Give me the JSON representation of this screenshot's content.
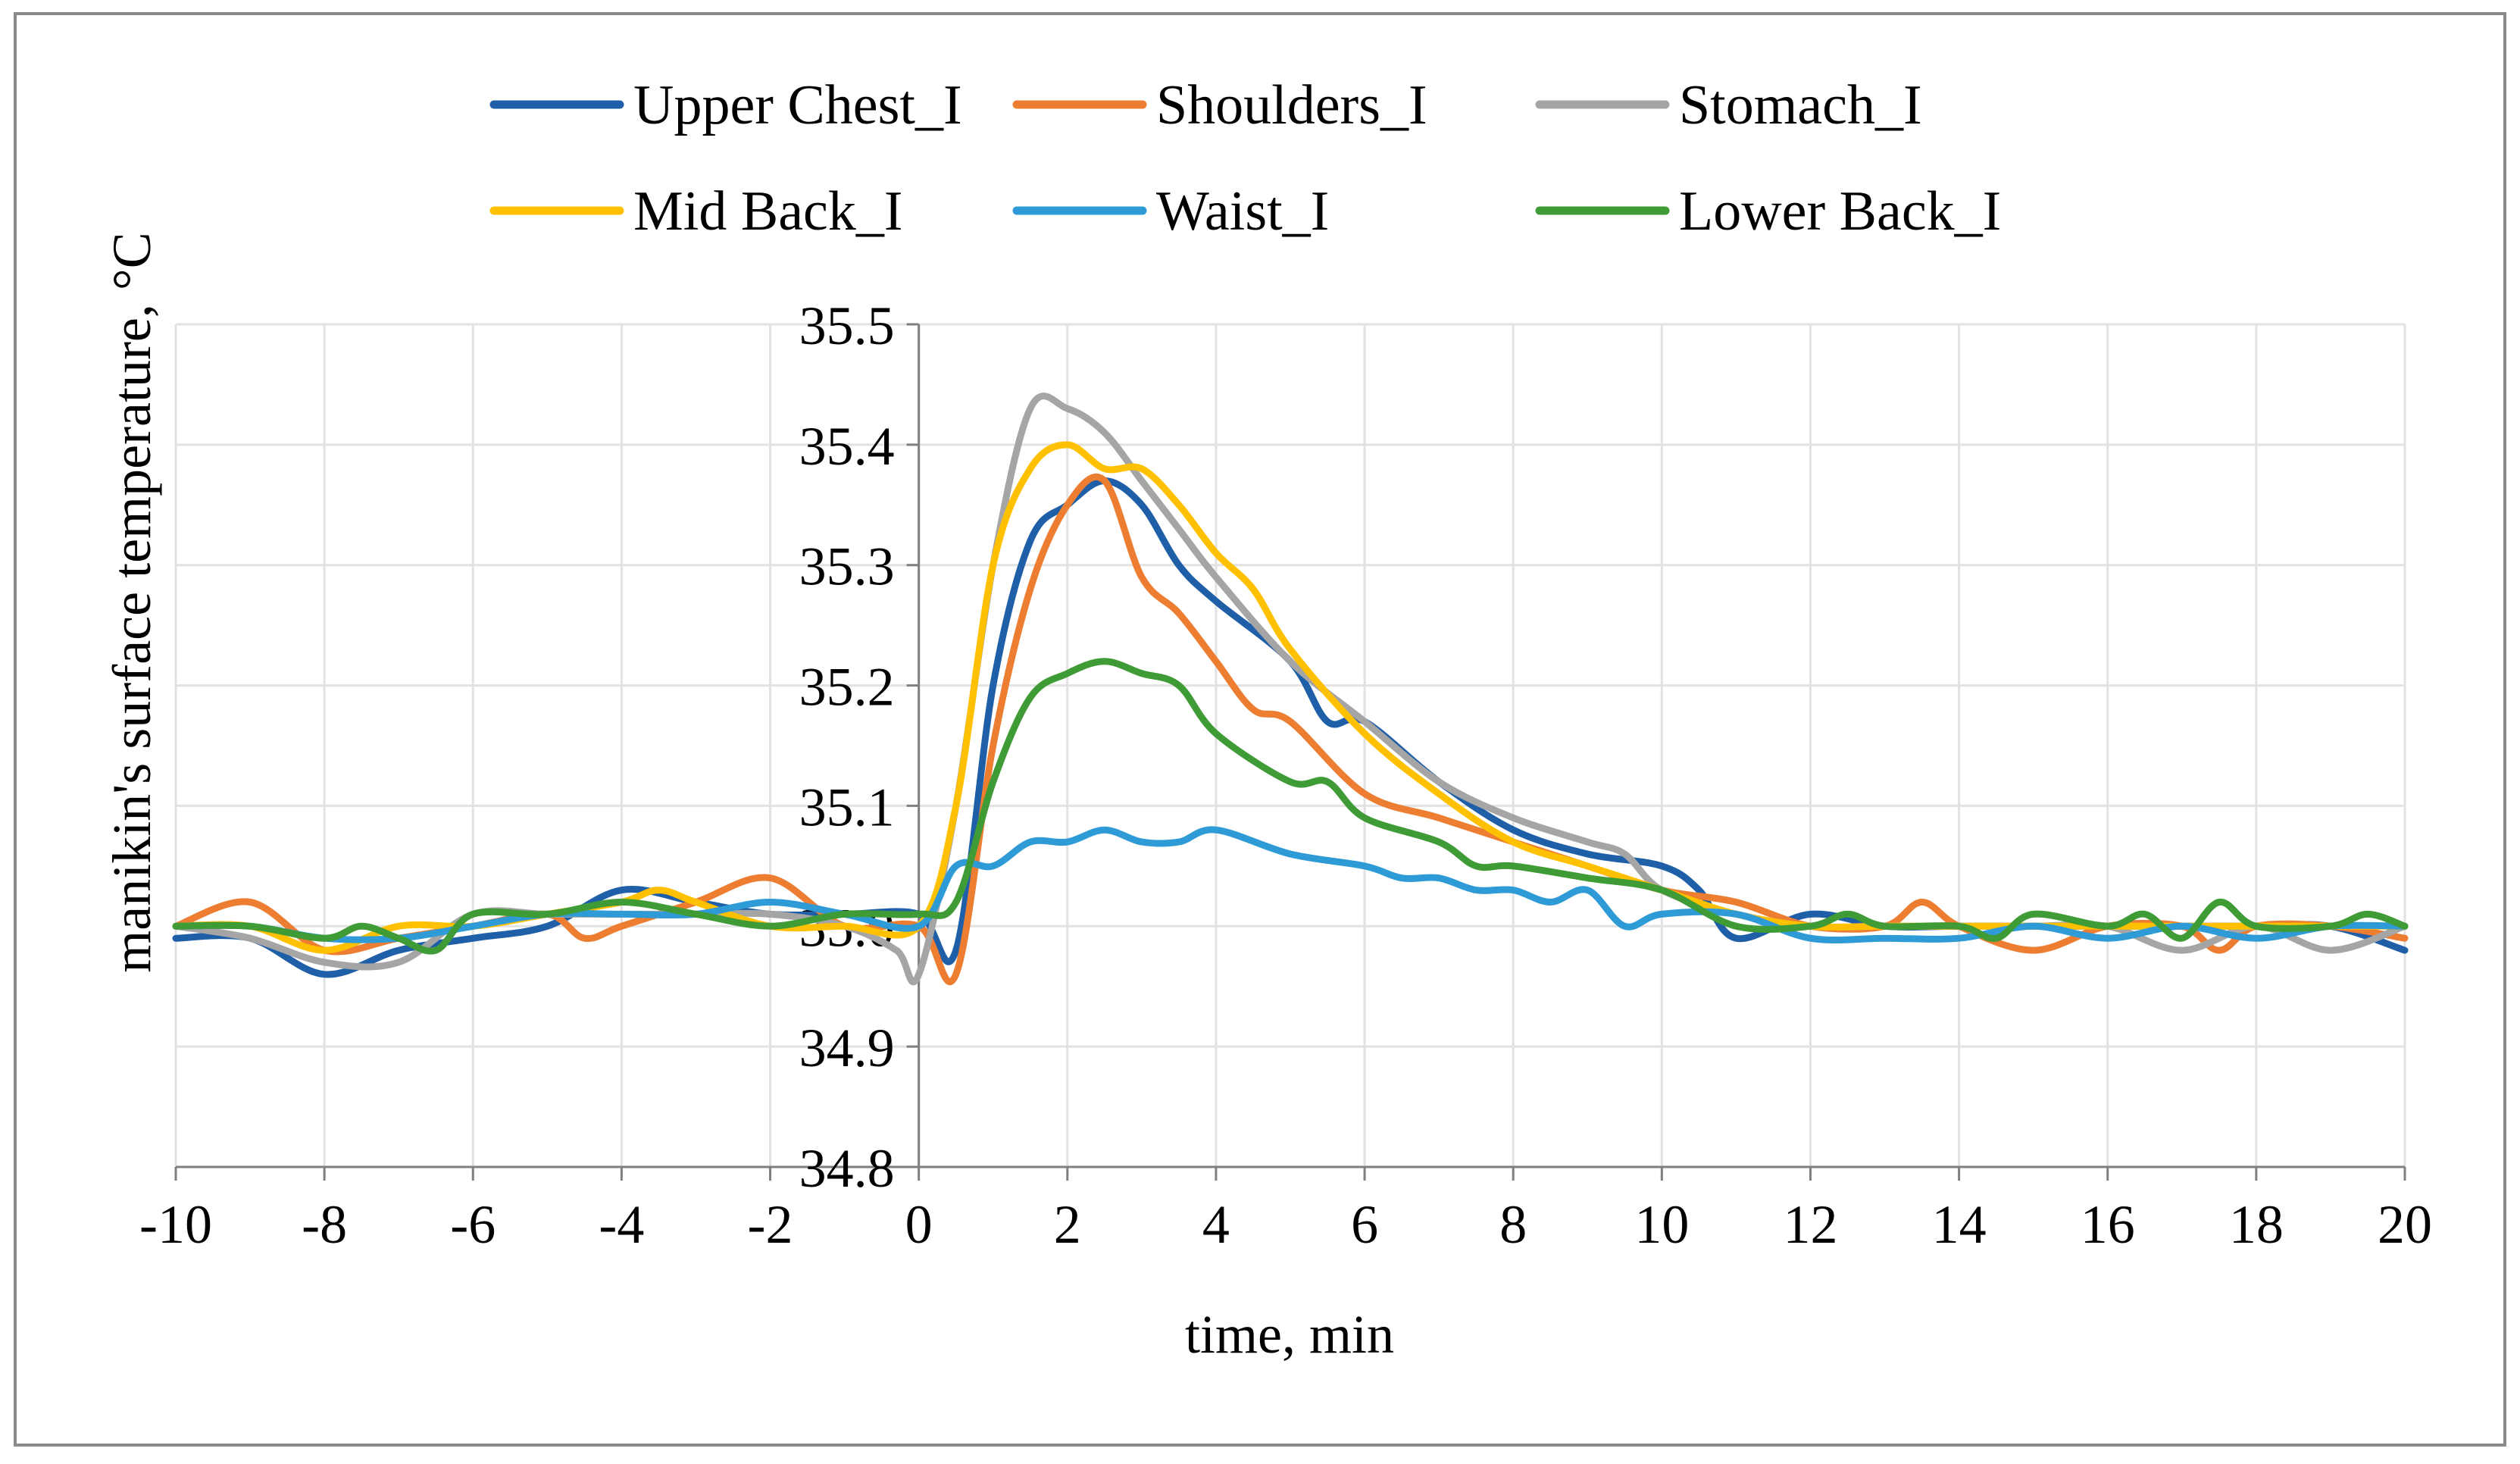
{
  "chart_data": {
    "type": "line",
    "title": "",
    "xlabel": "time, min",
    "ylabel": "manikin's surface temperature, °C",
    "xlim": [
      -10,
      20
    ],
    "ylim": [
      34.8,
      35.5
    ],
    "grid": true,
    "legend_position": "top",
    "x_tick_labels": [
      "-10",
      "-8",
      "-6",
      "-4",
      "-2",
      "0",
      "2",
      "4",
      "6",
      "8",
      "10",
      "12",
      "14",
      "16",
      "18",
      "20"
    ],
    "y_tick_labels": [
      "34.8",
      "34.9",
      "35.0",
      "35.1",
      "35.2",
      "35.3",
      "35.4",
      "35.5"
    ],
    "series": [
      {
        "name": "Upper Chest_I",
        "color": "#1f5fa8",
        "points": [
          [
            -10,
            34.99
          ],
          [
            -9,
            34.99
          ],
          [
            -8,
            34.96
          ],
          [
            -7,
            34.98
          ],
          [
            -6,
            34.99
          ],
          [
            -5,
            35.0
          ],
          [
            -4,
            35.03
          ],
          [
            -3,
            35.02
          ],
          [
            -2,
            35.01
          ],
          [
            -1,
            35.01
          ],
          [
            0,
            35.01
          ],
          [
            0.5,
            34.98
          ],
          [
            1,
            35.2
          ],
          [
            1.5,
            35.32
          ],
          [
            2,
            35.35
          ],
          [
            2.5,
            35.37
          ],
          [
            3,
            35.35
          ],
          [
            3.5,
            35.3
          ],
          [
            4,
            35.27
          ],
          [
            5,
            35.22
          ],
          [
            5.5,
            35.17
          ],
          [
            6,
            35.17
          ],
          [
            7,
            35.12
          ],
          [
            8,
            35.08
          ],
          [
            9,
            35.06
          ],
          [
            10,
            35.05
          ],
          [
            10.5,
            35.03
          ],
          [
            11,
            34.99
          ],
          [
            12,
            35.01
          ],
          [
            13,
            35.0
          ],
          [
            14,
            35.0
          ],
          [
            15,
            35.0
          ],
          [
            16,
            35.0
          ],
          [
            17,
            35.0
          ],
          [
            18,
            35.0
          ],
          [
            19,
            35.0
          ],
          [
            20,
            34.98
          ]
        ]
      },
      {
        "name": "Shoulders_I",
        "color": "#ed7d31",
        "points": [
          [
            -10,
            35.0
          ],
          [
            -9,
            35.02
          ],
          [
            -8,
            34.98
          ],
          [
            -7,
            34.99
          ],
          [
            -6,
            35.0
          ],
          [
            -5,
            35.01
          ],
          [
            -4.5,
            34.99
          ],
          [
            -4,
            35.0
          ],
          [
            -3,
            35.02
          ],
          [
            -2,
            35.04
          ],
          [
            -1,
            35.0
          ],
          [
            0,
            35.0
          ],
          [
            0.5,
            34.96
          ],
          [
            1,
            35.15
          ],
          [
            1.5,
            35.28
          ],
          [
            2,
            35.35
          ],
          [
            2.5,
            35.37
          ],
          [
            3,
            35.29
          ],
          [
            3.5,
            35.26
          ],
          [
            4,
            35.22
          ],
          [
            4.5,
            35.18
          ],
          [
            5,
            35.17
          ],
          [
            6,
            35.11
          ],
          [
            7,
            35.09
          ],
          [
            8,
            35.07
          ],
          [
            9,
            35.05
          ],
          [
            10,
            35.03
          ],
          [
            11,
            35.02
          ],
          [
            12,
            35.0
          ],
          [
            13,
            35.0
          ],
          [
            13.5,
            35.02
          ],
          [
            14,
            35.0
          ],
          [
            15,
            34.98
          ],
          [
            16,
            35.0
          ],
          [
            17,
            35.0
          ],
          [
            17.5,
            34.98
          ],
          [
            18,
            35.0
          ],
          [
            19,
            35.0
          ],
          [
            20,
            34.99
          ]
        ]
      },
      {
        "name": "Stomach_I",
        "color": "#a5a5a5",
        "points": [
          [
            -10,
            35.0
          ],
          [
            -9,
            34.99
          ],
          [
            -8,
            34.97
          ],
          [
            -7,
            34.97
          ],
          [
            -6,
            35.01
          ],
          [
            -5,
            35.01
          ],
          [
            -4,
            35.01
          ],
          [
            -3,
            35.01
          ],
          [
            -2,
            35.01
          ],
          [
            -1,
            35.0
          ],
          [
            -0.3,
            34.98
          ],
          [
            0,
            34.96
          ],
          [
            0.5,
            35.1
          ],
          [
            1,
            35.3
          ],
          [
            1.5,
            35.43
          ],
          [
            2,
            35.43
          ],
          [
            2.5,
            35.41
          ],
          [
            3,
            35.37
          ],
          [
            3.5,
            35.33
          ],
          [
            4,
            35.29
          ],
          [
            5,
            35.22
          ],
          [
            6,
            35.17
          ],
          [
            7,
            35.12
          ],
          [
            8,
            35.09
          ],
          [
            9,
            35.07
          ],
          [
            9.5,
            35.06
          ],
          [
            10,
            35.03
          ],
          [
            11,
            35.01
          ],
          [
            12,
            35.0
          ],
          [
            13,
            35.0
          ],
          [
            14,
            35.0
          ],
          [
            15,
            35.0
          ],
          [
            16,
            35.0
          ],
          [
            17,
            34.98
          ],
          [
            18,
            35.0
          ],
          [
            19,
            34.98
          ],
          [
            20,
            35.0
          ]
        ]
      },
      {
        "name": "Mid Back_I",
        "color": "#ffc000",
        "points": [
          [
            -10,
            35.0
          ],
          [
            -9,
            35.0
          ],
          [
            -8,
            34.98
          ],
          [
            -7,
            35.0
          ],
          [
            -6,
            35.0
          ],
          [
            -5,
            35.01
          ],
          [
            -4,
            35.02
          ],
          [
            -3.5,
            35.03
          ],
          [
            -3,
            35.02
          ],
          [
            -2,
            35.0
          ],
          [
            -1,
            35.0
          ],
          [
            0,
            35.0
          ],
          [
            0.5,
            35.1
          ],
          [
            1,
            35.3
          ],
          [
            1.5,
            35.38
          ],
          [
            2,
            35.4
          ],
          [
            2.5,
            35.38
          ],
          [
            3,
            35.38
          ],
          [
            3.5,
            35.35
          ],
          [
            4,
            35.31
          ],
          [
            4.5,
            35.28
          ],
          [
            5,
            35.23
          ],
          [
            6,
            35.16
          ],
          [
            7,
            35.11
          ],
          [
            8,
            35.07
          ],
          [
            9,
            35.05
          ],
          [
            10,
            35.03
          ],
          [
            11,
            35.01
          ],
          [
            12,
            35.0
          ],
          [
            13,
            35.0
          ],
          [
            14,
            35.0
          ],
          [
            15,
            35.0
          ],
          [
            16,
            35.0
          ],
          [
            17,
            35.0
          ],
          [
            18,
            35.0
          ],
          [
            19,
            35.0
          ],
          [
            20,
            35.0
          ]
        ]
      },
      {
        "name": "Waist_I",
        "color": "#2e9bd6",
        "points": [
          [
            -10,
            35.0
          ],
          [
            -9,
            35.0
          ],
          [
            -8,
            34.99
          ],
          [
            -7,
            34.99
          ],
          [
            -6,
            35.0
          ],
          [
            -5,
            35.01
          ],
          [
            -4,
            35.01
          ],
          [
            -3,
            35.01
          ],
          [
            -2,
            35.02
          ],
          [
            -1,
            35.01
          ],
          [
            0,
            35.0
          ],
          [
            0.5,
            35.05
          ],
          [
            1,
            35.05
          ],
          [
            1.5,
            35.07
          ],
          [
            2,
            35.07
          ],
          [
            2.5,
            35.08
          ],
          [
            3,
            35.07
          ],
          [
            3.5,
            35.07
          ],
          [
            4,
            35.08
          ],
          [
            5,
            35.06
          ],
          [
            6,
            35.05
          ],
          [
            6.5,
            35.04
          ],
          [
            7,
            35.04
          ],
          [
            7.5,
            35.03
          ],
          [
            8,
            35.03
          ],
          [
            8.5,
            35.02
          ],
          [
            9,
            35.03
          ],
          [
            9.5,
            35.0
          ],
          [
            10,
            35.01
          ],
          [
            11,
            35.01
          ],
          [
            12,
            34.99
          ],
          [
            13,
            34.99
          ],
          [
            14,
            34.99
          ],
          [
            15,
            35.0
          ],
          [
            16,
            34.99
          ],
          [
            17,
            35.0
          ],
          [
            18,
            34.99
          ],
          [
            19,
            35.0
          ],
          [
            20,
            35.0
          ]
        ]
      },
      {
        "name": "Lower Back_I",
        "color": "#3f9b35",
        "points": [
          [
            -10,
            35.0
          ],
          [
            -9,
            35.0
          ],
          [
            -8,
            34.99
          ],
          [
            -7.5,
            35.0
          ],
          [
            -7,
            34.99
          ],
          [
            -6.5,
            34.98
          ],
          [
            -6,
            35.01
          ],
          [
            -5,
            35.01
          ],
          [
            -4,
            35.02
          ],
          [
            -3,
            35.01
          ],
          [
            -2,
            35.0
          ],
          [
            -1,
            35.01
          ],
          [
            0,
            35.01
          ],
          [
            0.5,
            35.02
          ],
          [
            1,
            35.12
          ],
          [
            1.5,
            35.19
          ],
          [
            2,
            35.21
          ],
          [
            2.5,
            35.22
          ],
          [
            3,
            35.21
          ],
          [
            3.5,
            35.2
          ],
          [
            4,
            35.16
          ],
          [
            5,
            35.12
          ],
          [
            5.5,
            35.12
          ],
          [
            6,
            35.09
          ],
          [
            7,
            35.07
          ],
          [
            7.5,
            35.05
          ],
          [
            8,
            35.05
          ],
          [
            9,
            35.04
          ],
          [
            10,
            35.03
          ],
          [
            11,
            35.0
          ],
          [
            12,
            35.0
          ],
          [
            12.5,
            35.01
          ],
          [
            13,
            35.0
          ],
          [
            14,
            35.0
          ],
          [
            14.5,
            34.99
          ],
          [
            15,
            35.01
          ],
          [
            16,
            35.0
          ],
          [
            16.5,
            35.01
          ],
          [
            17,
            34.99
          ],
          [
            17.5,
            35.02
          ],
          [
            18,
            35.0
          ],
          [
            19,
            35.0
          ],
          [
            19.5,
            35.01
          ],
          [
            20,
            35.0
          ]
        ]
      }
    ]
  }
}
